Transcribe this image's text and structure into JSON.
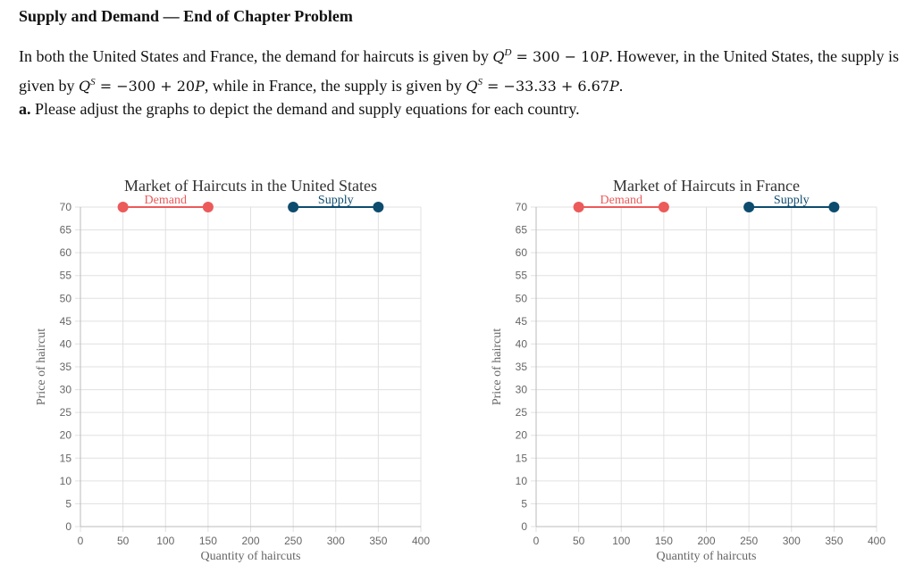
{
  "header": {
    "title": "Supply and Demand — End of Chapter Problem"
  },
  "problem": {
    "intro_1": "In both the United States and France, the demand for haircuts is given by ",
    "demand_eq": "Q",
    "demand_sup": "D",
    "demand_rhs": " = 300 − 10",
    "demand_var": "P",
    "intro_2": ". However, in the United States, the supply is given by ",
    "us_supply_q": "Q",
    "us_supply_sup": "S",
    "us_supply_rhs": " = −300 + 20",
    "us_supply_var": "P",
    "intro_3": ", while in France, the supply is given by ",
    "fr_supply_q": "Q",
    "fr_supply_sup": "S",
    "fr_supply_rhs": " = −33.33 + 6.67",
    "fr_supply_var": "P",
    "intro_4": "."
  },
  "question": {
    "label": "a.",
    "text": " Please adjust the graphs to depict the demand and supply equations for each country."
  },
  "colors": {
    "demand": "#ec5a5a",
    "supply": "#0d4c6e",
    "grid": "#e0e0e0"
  },
  "chart_data": [
    {
      "type": "line",
      "title": "Market of Haircuts in the United States",
      "xlabel": "Quantity of haircuts",
      "ylabel": "Price of haircut",
      "xlim": [
        0,
        400
      ],
      "ylim": [
        0,
        70
      ],
      "x_ticks": [
        0,
        50,
        100,
        150,
        200,
        250,
        300,
        350,
        400
      ],
      "y_ticks": [
        0,
        5,
        10,
        15,
        20,
        25,
        30,
        35,
        40,
        45,
        50,
        55,
        60,
        65,
        70
      ],
      "grid": true,
      "series": [
        {
          "name": "Demand",
          "color": "#ec5a5a",
          "points": [
            [
              50,
              70
            ],
            [
              150,
              70
            ]
          ]
        },
        {
          "name": "Supply",
          "color": "#0d4c6e",
          "points": [
            [
              250,
              70
            ],
            [
              350,
              70
            ]
          ]
        }
      ]
    },
    {
      "type": "line",
      "title": "Market of Haircuts in France",
      "xlabel": "Quantity of haircuts",
      "ylabel": "Price of haircut",
      "xlim": [
        0,
        400
      ],
      "ylim": [
        0,
        70
      ],
      "x_ticks": [
        0,
        50,
        100,
        150,
        200,
        250,
        300,
        350,
        400
      ],
      "y_ticks": [
        0,
        5,
        10,
        15,
        20,
        25,
        30,
        35,
        40,
        45,
        50,
        55,
        60,
        65,
        70
      ],
      "grid": true,
      "series": [
        {
          "name": "Demand",
          "color": "#ec5a5a",
          "points": [
            [
              50,
              70
            ],
            [
              150,
              70
            ]
          ]
        },
        {
          "name": "Supply",
          "color": "#0d4c6e",
          "points": [
            [
              250,
              70
            ],
            [
              350,
              70
            ]
          ]
        }
      ]
    }
  ]
}
